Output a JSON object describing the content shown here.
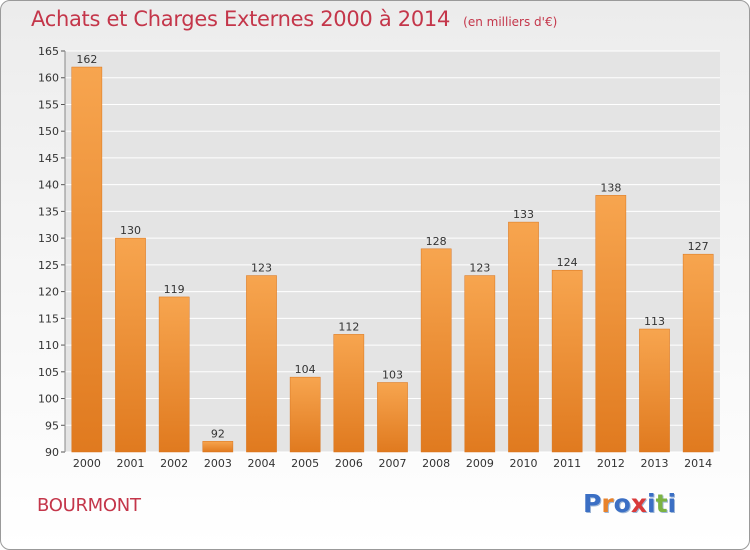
{
  "title": "Achats et Charges Externes 2000 à 2014",
  "unit_note": "(en milliers d'€)",
  "place": "BOURMONT",
  "logo": {
    "text": "Proxiti",
    "colors": [
      "#3b6fc4",
      "#e8822a",
      "#3b6fc4",
      "#d93a3a",
      "#3b6fc4",
      "#7cb342",
      "#3b6fc4"
    ]
  },
  "colors": {
    "bar_light": "#f7a54f",
    "bar_dark": "#e07a1f",
    "title": "#c4364a",
    "grid": "#ffffff",
    "plot_bg": "#e4e4e4"
  },
  "chart_data": {
    "type": "bar",
    "title": "Achats et Charges Externes 2000 à 2014",
    "subtitle": "(en milliers d'€)",
    "categories": [
      "2000",
      "2001",
      "2002",
      "2003",
      "2004",
      "2005",
      "2006",
      "2007",
      "2008",
      "2009",
      "2010",
      "2011",
      "2012",
      "2013",
      "2014"
    ],
    "values": [
      162,
      130,
      119,
      92,
      123,
      104,
      112,
      103,
      128,
      123,
      133,
      124,
      138,
      113,
      127
    ],
    "data_labels": [
      "162",
      "130",
      "119",
      "92",
      "123",
      "104",
      "112",
      "103",
      "128",
      "123",
      "133",
      "124",
      "138",
      "113",
      "127"
    ],
    "y_ticks": [
      "90",
      "95",
      "100",
      "105",
      "110",
      "115",
      "120",
      "125",
      "130",
      "135",
      "140",
      "145",
      "150",
      "155",
      "160",
      "165"
    ],
    "ylim": [
      90,
      165
    ],
    "grid": true,
    "legend": "none"
  }
}
